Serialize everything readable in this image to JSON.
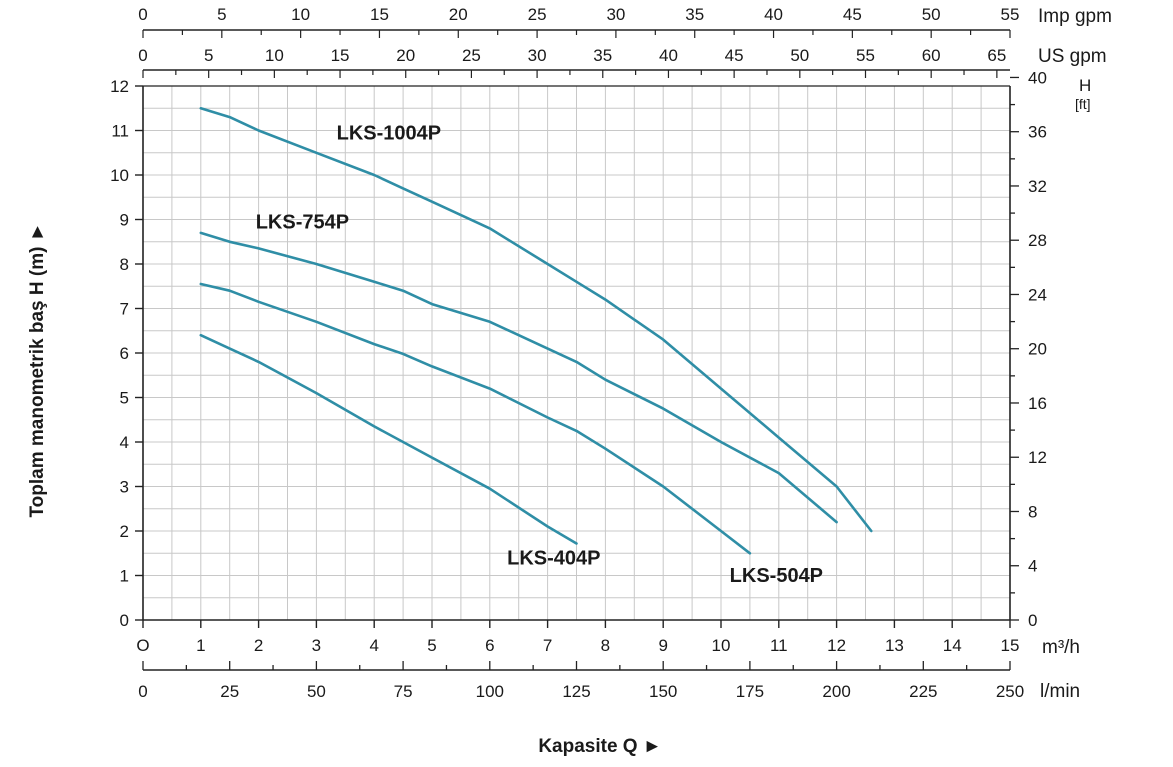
{
  "chart_data": {
    "type": "line",
    "colors": {
      "curve": "#2f8ea6",
      "grid": "#c8c8c8",
      "axis": "#222222"
    },
    "x_primary": {
      "unit": "m³/h",
      "ticks": [
        "O",
        "1",
        "2",
        "3",
        "4",
        "5",
        "6",
        "7",
        "8",
        "9",
        "10",
        "11",
        "12",
        "13",
        "14",
        "15"
      ],
      "range": [
        0,
        15
      ]
    },
    "x_lmin": {
      "unit": "l/min",
      "ticks": [
        "0",
        "25",
        "50",
        "75",
        "100",
        "125",
        "150",
        "175",
        "200",
        "225",
        "250"
      ],
      "range": [
        0,
        250
      ]
    },
    "x_imp_gpm": {
      "unit": "Imp gpm",
      "ticks": [
        "0",
        "5",
        "10",
        "15",
        "20",
        "25",
        "30",
        "35",
        "40",
        "45",
        "50",
        "55"
      ],
      "range": [
        0,
        55
      ]
    },
    "x_us_gpm": {
      "unit": "US gpm",
      "ticks": [
        "0",
        "5",
        "10",
        "15",
        "20",
        "25",
        "30",
        "35",
        "40",
        "45",
        "50",
        "55",
        "60",
        "65"
      ],
      "range": [
        0,
        66
      ]
    },
    "y_left": {
      "label": "Toplam manometrik baş H (m) ►",
      "ticks": [
        "0",
        "1",
        "2",
        "3",
        "4",
        "5",
        "6",
        "7",
        "8",
        "9",
        "10",
        "11",
        "12"
      ],
      "range": [
        0,
        12
      ]
    },
    "y_right": {
      "unit": "H",
      "unit2": "[ft]",
      "ticks": [
        "0",
        "4",
        "8",
        "12",
        "16",
        "20",
        "24",
        "28",
        "32",
        "36",
        "40"
      ],
      "range": [
        0,
        40
      ]
    },
    "xlabel": "Kapasite Q ►",
    "grid": true,
    "series": [
      {
        "name": "LKS-1004P",
        "points": [
          [
            1,
            11.5
          ],
          [
            1.5,
            11.3
          ],
          [
            2,
            11.0
          ],
          [
            3,
            10.5
          ],
          [
            4,
            10.0
          ],
          [
            4.5,
            9.7
          ],
          [
            5,
            9.4
          ],
          [
            6,
            8.8
          ],
          [
            7,
            8.0
          ],
          [
            7.5,
            7.6
          ],
          [
            8,
            7.2
          ],
          [
            9,
            6.3
          ],
          [
            10,
            5.2
          ],
          [
            11,
            4.1
          ],
          [
            12,
            3.0
          ],
          [
            12.6,
            2.0
          ]
        ]
      },
      {
        "name": "LKS-754P",
        "points": [
          [
            1,
            8.7
          ],
          [
            1.5,
            8.5
          ],
          [
            2,
            8.35
          ],
          [
            3,
            8.0
          ],
          [
            4,
            7.6
          ],
          [
            4.5,
            7.4
          ],
          [
            5,
            7.1
          ],
          [
            6,
            6.7
          ],
          [
            7,
            6.1
          ],
          [
            7.5,
            5.8
          ],
          [
            8,
            5.4
          ],
          [
            9,
            4.75
          ],
          [
            10,
            4.0
          ],
          [
            11,
            3.3
          ],
          [
            12,
            2.2
          ]
        ]
      },
      {
        "name": "LKS-504P",
        "points": [
          [
            1,
            7.55
          ],
          [
            1.5,
            7.4
          ],
          [
            2,
            7.15
          ],
          [
            3,
            6.7
          ],
          [
            4,
            6.2
          ],
          [
            4.5,
            5.98
          ],
          [
            5,
            5.7
          ],
          [
            6,
            5.2
          ],
          [
            7,
            4.55
          ],
          [
            7.5,
            4.25
          ],
          [
            8,
            3.85
          ],
          [
            9,
            3.0
          ],
          [
            10,
            2.0
          ],
          [
            10.5,
            1.5
          ]
        ]
      },
      {
        "name": "LKS-404P",
        "points": [
          [
            1,
            6.4
          ],
          [
            1.5,
            6.1
          ],
          [
            2,
            5.8
          ],
          [
            3,
            5.1
          ],
          [
            4,
            4.35
          ],
          [
            5,
            3.65
          ],
          [
            6,
            2.95
          ],
          [
            7,
            2.1
          ],
          [
            7.5,
            1.72
          ]
        ]
      }
    ],
    "labels": [
      {
        "series": "LKS-1004P",
        "text": "LKS-1004P",
        "at": [
          3.35,
          10.8
        ]
      },
      {
        "series": "LKS-754P",
        "text": "LKS-754P",
        "at": [
          1.95,
          8.8
        ]
      },
      {
        "series": "LKS-404P",
        "text": "LKS-404P",
        "at": [
          6.3,
          1.25
        ]
      },
      {
        "series": "LKS-504P",
        "text": "LKS-504P",
        "at": [
          10.15,
          0.85
        ]
      }
    ]
  }
}
